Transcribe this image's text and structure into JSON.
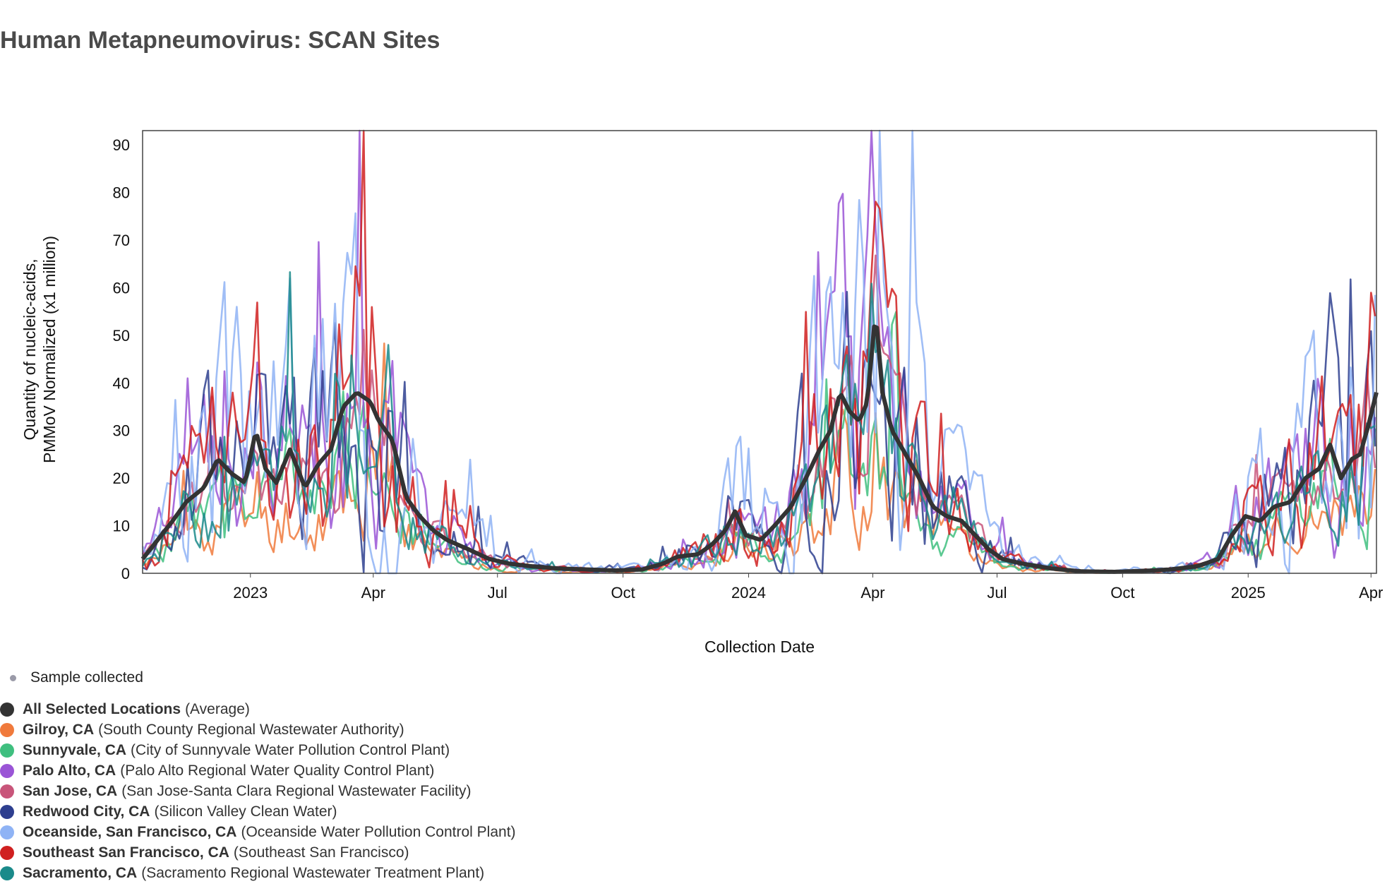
{
  "page": {
    "title": "Human Metapneumovirus: SCAN Sites"
  },
  "chart_data": {
    "type": "line",
    "title": "Human Metapneumovirus: SCAN Sites",
    "xlabel": "Collection Date",
    "ylabel_lines": [
      "Quantity of nucleic-acids,",
      "PMMoV Normalized (x1 million)"
    ],
    "x_range": [
      "2022-10-14",
      "2025-04-05"
    ],
    "ylim": [
      0,
      93
    ],
    "yticks": [
      0,
      10,
      20,
      30,
      40,
      50,
      60,
      70,
      80,
      90
    ],
    "xticks": [
      {
        "date": "2023-01-01",
        "label": "2023"
      },
      {
        "date": "2023-04-01",
        "label": "Apr"
      },
      {
        "date": "2023-07-01",
        "label": "Jul"
      },
      {
        "date": "2023-10-01",
        "label": "Oct"
      },
      {
        "date": "2024-01-01",
        "label": "2024"
      },
      {
        "date": "2024-04-01",
        "label": "Apr"
      },
      {
        "date": "2024-07-01",
        "label": "Jul"
      },
      {
        "date": "2024-10-01",
        "label": "Oct"
      },
      {
        "date": "2025-01-01",
        "label": "2025"
      },
      {
        "date": "2025-04-01",
        "label": "Apr"
      }
    ],
    "grid": false,
    "legend_position": "bottom-left",
    "sample_marker_label": "Sample collected",
    "series": [
      {
        "name": "Gilroy, CA",
        "detail": "(South County Regional Wastewater Authority)",
        "color": "#f07a3c",
        "seed": 11,
        "scale": 0.55,
        "noise": 0.55
      },
      {
        "name": "Sunnyvale, CA",
        "detail": "(City of Sunnyvale Water Pollution Control Plant)",
        "color": "#3fbf7f",
        "seed": 23,
        "scale": 0.7,
        "noise": 0.5
      },
      {
        "name": "Palo Alto, CA",
        "detail": "(Palo Alto Regional Water Quality Control Plant)",
        "color": "#9a55d6",
        "seed": 37,
        "scale": 1.15,
        "noise": 0.6
      },
      {
        "name": "San Jose, CA",
        "detail": "(San Jose-Santa Clara Regional Wastewater Facility)",
        "color": "#c8557a",
        "seed": 41,
        "scale": 0.9,
        "noise": 0.45
      },
      {
        "name": "Redwood City, CA",
        "detail": "(Silicon Valley Clean Water)",
        "color": "#2e3f8f",
        "seed": 53,
        "scale": 1.1,
        "noise": 0.65
      },
      {
        "name": "Oceanside, San Francisco, CA",
        "detail": "(Oceanside Water Pollution Control Plant)",
        "color": "#8fb3f5",
        "seed": 67,
        "scale": 1.45,
        "noise": 0.7
      },
      {
        "name": "Southeast San Francisco, CA",
        "detail": "(Southeast San Francisco)",
        "color": "#d02020",
        "seed": 71,
        "scale": 1.1,
        "noise": 0.6
      },
      {
        "name": "Sacramento, CA",
        "detail": "(Sacramento Regional Wastewater Treatment Plant)",
        "color": "#1a8a8a",
        "seed": 83,
        "scale": 0.85,
        "noise": 0.5
      }
    ],
    "average": {
      "name": "All Selected Locations",
      "detail": "(Average)",
      "color": "#333333",
      "points": [
        [
          "2022-10-14",
          3
        ],
        [
          "2022-10-25",
          7
        ],
        [
          "2022-11-05",
          11
        ],
        [
          "2022-11-15",
          15
        ],
        [
          "2022-11-28",
          18
        ],
        [
          "2022-12-08",
          24
        ],
        [
          "2022-12-18",
          21
        ],
        [
          "2022-12-28",
          19
        ],
        [
          "2023-01-05",
          30
        ],
        [
          "2023-01-12",
          22
        ],
        [
          "2023-01-20",
          19
        ],
        [
          "2023-01-30",
          26
        ],
        [
          "2023-02-10",
          18
        ],
        [
          "2023-02-20",
          23
        ],
        [
          "2023-03-01",
          26
        ],
        [
          "2023-03-10",
          35
        ],
        [
          "2023-03-20",
          38
        ],
        [
          "2023-03-30",
          36
        ],
        [
          "2023-04-05",
          32
        ],
        [
          "2023-04-15",
          28
        ],
        [
          "2023-04-25",
          16
        ],
        [
          "2023-05-05",
          12
        ],
        [
          "2023-05-15",
          9
        ],
        [
          "2023-05-25",
          7
        ],
        [
          "2023-06-10",
          5
        ],
        [
          "2023-06-25",
          3
        ],
        [
          "2023-07-10",
          2
        ],
        [
          "2023-07-25",
          1.5
        ],
        [
          "2023-08-15",
          1
        ],
        [
          "2023-09-05",
          0.8
        ],
        [
          "2023-09-25",
          0.6
        ],
        [
          "2023-10-15",
          0.8
        ],
        [
          "2023-10-30",
          2
        ],
        [
          "2023-11-10",
          3.5
        ],
        [
          "2023-11-25",
          4
        ],
        [
          "2023-12-05",
          6
        ],
        [
          "2023-12-15",
          9
        ],
        [
          "2023-12-22",
          13
        ],
        [
          "2023-12-30",
          8
        ],
        [
          "2024-01-10",
          7
        ],
        [
          "2024-01-20",
          10
        ],
        [
          "2024-02-01",
          14
        ],
        [
          "2024-02-12",
          20
        ],
        [
          "2024-02-22",
          26
        ],
        [
          "2024-03-01",
          30
        ],
        [
          "2024-03-08",
          38
        ],
        [
          "2024-03-15",
          34
        ],
        [
          "2024-03-22",
          32
        ],
        [
          "2024-03-28",
          36
        ],
        [
          "2024-04-03",
          55
        ],
        [
          "2024-04-08",
          38
        ],
        [
          "2024-04-15",
          30
        ],
        [
          "2024-04-25",
          25
        ],
        [
          "2024-05-05",
          20
        ],
        [
          "2024-05-15",
          14
        ],
        [
          "2024-05-25",
          12
        ],
        [
          "2024-06-05",
          11
        ],
        [
          "2024-06-15",
          8
        ],
        [
          "2024-06-25",
          5
        ],
        [
          "2024-07-05",
          3
        ],
        [
          "2024-07-20",
          2
        ],
        [
          "2024-08-10",
          1
        ],
        [
          "2024-09-01",
          0.4
        ],
        [
          "2024-09-25",
          0.3
        ],
        [
          "2024-10-15",
          0.5
        ],
        [
          "2024-11-05",
          0.8
        ],
        [
          "2024-11-25",
          1.5
        ],
        [
          "2024-12-10",
          3
        ],
        [
          "2024-12-20",
          8
        ],
        [
          "2024-12-30",
          12
        ],
        [
          "2025-01-10",
          11
        ],
        [
          "2025-01-20",
          14
        ],
        [
          "2025-02-01",
          15
        ],
        [
          "2025-02-12",
          20
        ],
        [
          "2025-02-22",
          22
        ],
        [
          "2025-03-02",
          27
        ],
        [
          "2025-03-10",
          20
        ],
        [
          "2025-03-18",
          24
        ],
        [
          "2025-03-24",
          25
        ],
        [
          "2025-03-30",
          31
        ],
        [
          "2025-04-05",
          38
        ]
      ]
    }
  }
}
